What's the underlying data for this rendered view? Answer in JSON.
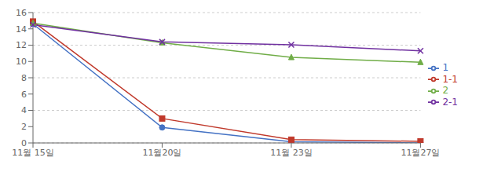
{
  "chart_data": {
    "type": "line",
    "categories": [
      "11월 15일",
      "11월20일",
      "11월 23일",
      "11월27일"
    ],
    "series": [
      {
        "name": "1",
        "values": [
          14.6,
          1.9,
          0.15,
          0.0
        ],
        "color": "#4472C4",
        "marker": "circle",
        "line_style": "solid"
      },
      {
        "name": "1-1",
        "values": [
          14.9,
          3.0,
          0.4,
          0.2
        ],
        "color": "#C0392B",
        "marker": "square",
        "line_style": "solid"
      },
      {
        "name": "2",
        "values": [
          14.7,
          12.3,
          10.5,
          9.9
        ],
        "color": "#70AD47",
        "marker": "triangle",
        "line_style": "solid"
      },
      {
        "name": "2-1",
        "values": [
          14.5,
          12.4,
          12.05,
          11.3
        ],
        "color": "#7030A0",
        "marker": "cross",
        "line_style": "solid"
      }
    ],
    "ylim": [
      0,
      16
    ],
    "yticks": [
      0,
      2,
      4,
      6,
      8,
      10,
      12,
      14,
      16
    ],
    "grid": "y",
    "legend": "right"
  }
}
